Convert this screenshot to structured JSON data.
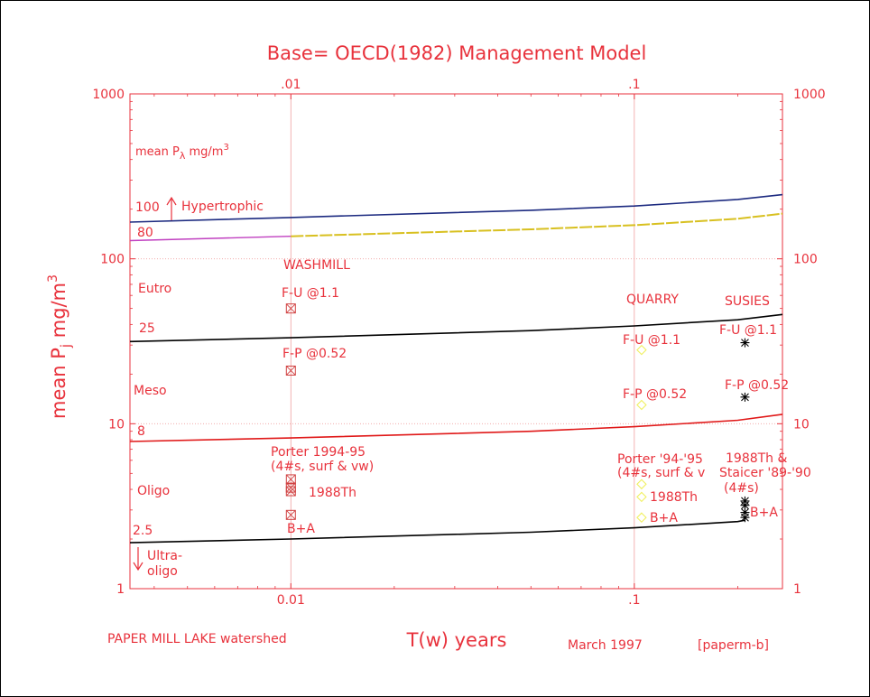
{
  "chart_data": {
    "type": "line",
    "title": "Base= OECD(1982) Management Model",
    "xlabel": "T(w) years",
    "ylabel": "mean P_j mg/m3",
    "ylabel_parts": {
      "main": "mean P",
      "sub": "j",
      "units": " mg/m",
      "sup": "3"
    },
    "xscale": "log",
    "yscale": "log",
    "xlim": [
      0.0034,
      0.27
    ],
    "ylim": [
      1,
      1000
    ],
    "x_ticks": [
      {
        "value": 0.01,
        "label": "0.01",
        "top_label": ".01"
      },
      {
        "value": 0.1,
        "label": ".1",
        "top_label": ".1"
      }
    ],
    "y_ticks": [
      {
        "value": 1,
        "label": "1"
      },
      {
        "value": 10,
        "label": "10"
      },
      {
        "value": 100,
        "label": "100"
      },
      {
        "value": 1000,
        "label": "1000"
      }
    ],
    "grid": {
      "x": [
        0.01,
        0.1
      ],
      "y": [
        10,
        100
      ]
    },
    "colors": {
      "axis": "#e8323c",
      "text": "#e8323c",
      "curve_100": "#1c2a80",
      "curve_80_left": "#c040c0",
      "curve_80_right": "#d8c020",
      "curve_25": "#000000",
      "curve_8": "#e01818",
      "curve_2_5": "#000000",
      "washmill_marker": "#d04040",
      "quarry_marker": "#f0f060",
      "susies_marker": "#000000",
      "gridline": "#f0a0a0"
    },
    "series": [
      {
        "id": "boundary-100",
        "x": [
          0.0034,
          0.01,
          0.05,
          0.1,
          0.2,
          0.27
        ],
        "y": [
          167,
          178,
          197,
          209,
          229,
          245
        ]
      },
      {
        "id": "boundary-80",
        "x": [
          0.0034,
          0.01,
          0.05,
          0.1,
          0.2,
          0.27
        ],
        "y": [
          129,
          137,
          151,
          160,
          175,
          188
        ]
      },
      {
        "id": "boundary-25",
        "x": [
          0.0034,
          0.01,
          0.05,
          0.1,
          0.2,
          0.27
        ],
        "y": [
          31.5,
          33.2,
          36.7,
          39.2,
          42.7,
          46
        ]
      },
      {
        "id": "boundary-8",
        "x": [
          0.0034,
          0.01,
          0.05,
          0.1,
          0.2,
          0.27
        ],
        "y": [
          7.8,
          8.2,
          9.0,
          9.6,
          10.5,
          11.4
        ]
      },
      {
        "id": "boundary-2.5",
        "x": [
          0.0034,
          0.01,
          0.05,
          0.1,
          0.2,
          0.21
        ],
        "y": [
          1.9,
          2.0,
          2.2,
          2.34,
          2.55,
          2.6
        ]
      }
    ],
    "markers": {
      "washmill": {
        "x": 0.01,
        "points": [
          50,
          21,
          4.6,
          4.1,
          3.9,
          2.8
        ]
      },
      "quarry": {
        "x": 0.105,
        "points": [
          28,
          13,
          4.3,
          3.6,
          2.7
        ]
      },
      "susies": {
        "x": 0.21,
        "points": [
          31,
          14.5,
          3.4,
          3.2,
          2.9,
          2.7
        ]
      }
    },
    "zones": [
      {
        "label": "Hypertrophic",
        "boundary": "100"
      },
      {
        "label": "Eutro",
        "boundary": "80"
      },
      {
        "label": "Meso",
        "boundary": "25"
      },
      {
        "label": "Oligo",
        "boundary": "8"
      },
      {
        "label_1": "Ultra-",
        "label_2": "oligo",
        "boundary": "2.5"
      }
    ],
    "legend_label": {
      "main": "mean P",
      "sub": "λ",
      "units": " mg/m",
      "sup": "3"
    },
    "annotations": {
      "washmill": {
        "title": "WASHMILL",
        "fu": "F-U @1.1",
        "fp": "F-P @0.52",
        "porter_1": "Porter 1994-95",
        "porter_2": "(4#s, surf & vw)",
        "th": "1988Th",
        "ba": "B+A"
      },
      "quarry": {
        "title": "QUARRY",
        "fu": "F-U @1.1",
        "fp": "F-P @0.52",
        "porter_1": "Porter '94-'95",
        "porter_2": "(4#s, surf & v",
        "th": "1988Th",
        "ba": "B+A"
      },
      "susies": {
        "title": "SUSIES",
        "fu": "F-U @1.1",
        "fp": "F-P @0.52",
        "th_1": "1988Th &",
        "th_2": "Staicer '89-'90",
        "th_3": "(4#s)",
        "ba": "B+A"
      }
    },
    "footer": {
      "left": "PAPER MILL LAKE watershed",
      "date": "March 1997",
      "code": "[paperm-b]"
    }
  }
}
